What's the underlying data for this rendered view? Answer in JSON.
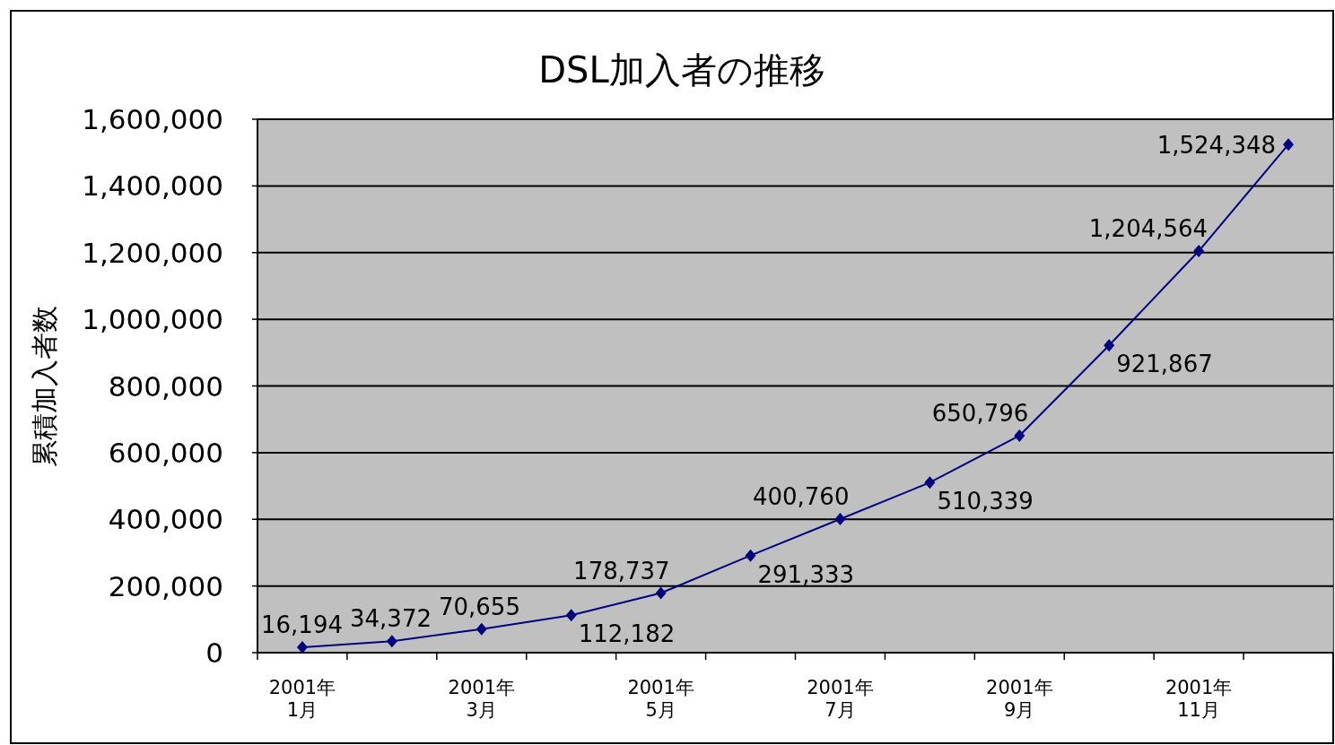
{
  "chart_data": {
    "type": "line",
    "title": "DSL加入者の推移",
    "ylabel": "累積加入者数",
    "categories": [
      "2001年\n1月",
      null,
      "2001年\n3月",
      null,
      "2001年\n5月",
      null,
      "2001年\n7月",
      null,
      "2001年\n9月",
      null,
      "2001年\n11月",
      null
    ],
    "series": [
      {
        "color": "#000080",
        "values": [
          16194,
          34372,
          70655,
          112182,
          178737,
          291333,
          400760,
          510339,
          650796,
          921867,
          1204564,
          1524348
        ],
        "value_labels": [
          "16,194",
          "34,372",
          "70,655",
          "112,182",
          "178,737",
          "291,333",
          "400,760",
          "510,339",
          "650,796",
          "921,867",
          "1,204,564",
          "1,524,348"
        ]
      }
    ],
    "ylim": [
      0,
      1600000
    ],
    "yticks": [
      0,
      {
        "value": 200000,
        "label": "200,000"
      },
      {
        "value": 400000,
        "label": "400,000"
      },
      {
        "value": 600000,
        "label": "600,000"
      },
      {
        "value": 800000,
        "label": "800,000"
      },
      {
        "value": 1000000,
        "label": "1,000,000"
      },
      {
        "value": 1200000,
        "label": "1,200,000"
      },
      {
        "value": 1400000,
        "label": "1,400,000"
      },
      {
        "value": 1600000,
        "label": "1,600,000"
      }
    ],
    "grid": "y",
    "marker": "diamond",
    "line_style": "solid"
  }
}
